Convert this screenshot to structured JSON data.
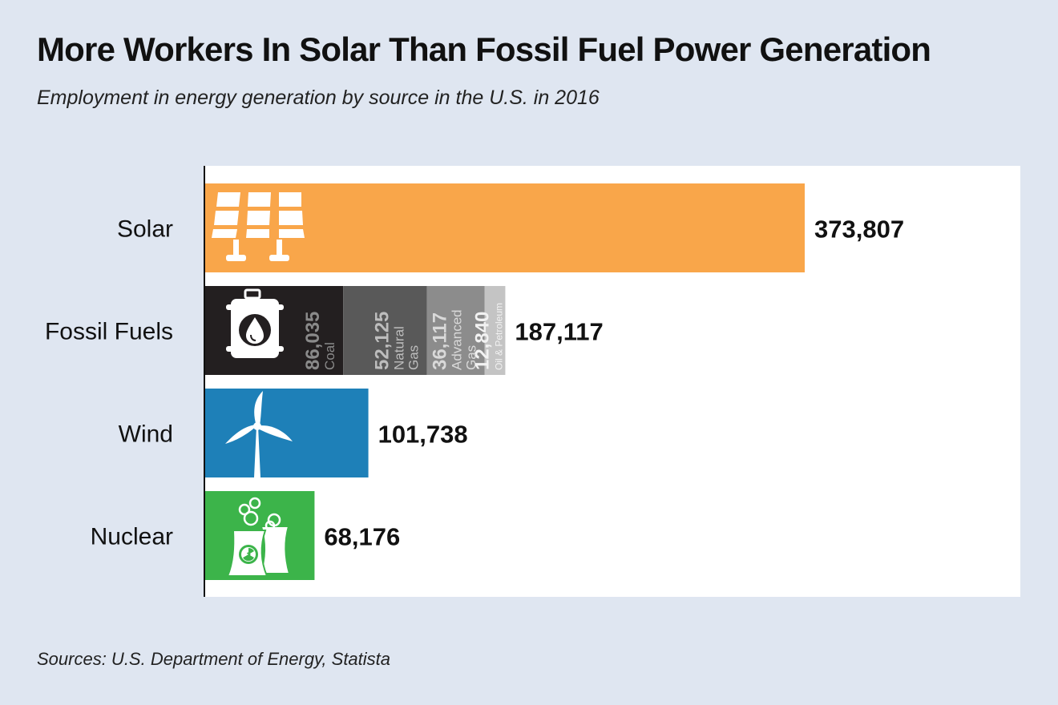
{
  "header": {
    "title": "More Workers In Solar Than Fossil Fuel Power Generation",
    "subtitle": "Employment in energy generation by source in the U.S. in 2016"
  },
  "footer": {
    "source": "Sources: U.S. Department of Energy, Statista"
  },
  "chart_data": {
    "type": "bar",
    "orientation": "horizontal",
    "categories": [
      "Solar",
      "Fossil Fuels",
      "Wind",
      "Nuclear"
    ],
    "values": [
      373807,
      187117,
      101738,
      68176
    ],
    "value_labels": [
      "373,807",
      "187,117",
      "101,738",
      "68,176"
    ],
    "xlim": [
      0,
      500000
    ],
    "grid": false,
    "colors": [
      "#f9a64a",
      "#1e80b8",
      "#3cb44a"
    ],
    "icons": [
      "solar-panel-icon",
      "oil-barrel-icon",
      "wind-turbine-icon",
      "nuclear-plant-icon"
    ],
    "fossil_breakdown": [
      {
        "name": "Coal",
        "value": 86035,
        "label": "86,035",
        "color": "#231f20",
        "text_color": "#8a8a8a"
      },
      {
        "name": "Natural Gas",
        "value": 52125,
        "label": "52,125",
        "color": "#595959",
        "text_color": "#bdbdbd"
      },
      {
        "name": "Advanced Gas",
        "value": 36117,
        "label": "36,117",
        "color": "#8c8c8c",
        "text_color": "#d9d9d9"
      },
      {
        "name": "Oil & Petroleum",
        "value": 12840,
        "label": "12,840",
        "color": "#c4c4c4",
        "text_color": "#f2f2f2"
      }
    ]
  }
}
